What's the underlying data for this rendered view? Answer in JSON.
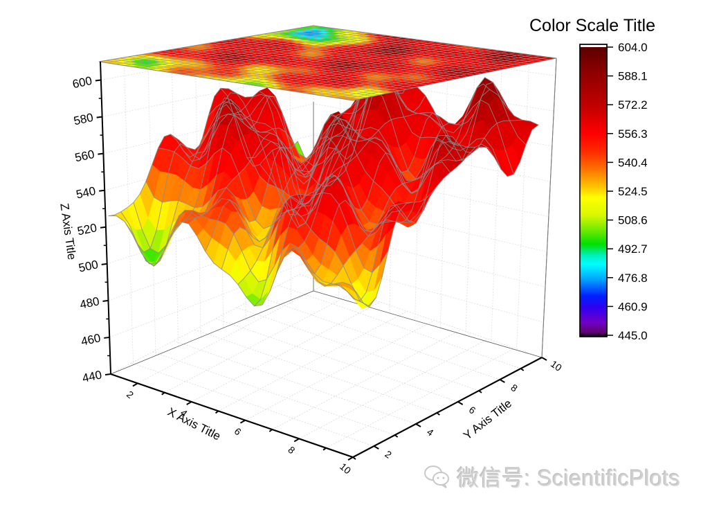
{
  "chart_data": {
    "type": "surface3d",
    "title": "",
    "xlabel": "X Axis Title",
    "ylabel": "Y Axis Title",
    "zlabel": "Z Axis Title",
    "x_ticks": [
      "2",
      "4",
      "6",
      "8",
      "10"
    ],
    "y_ticks": [
      "2",
      "4",
      "6",
      "8",
      "10"
    ],
    "z_ticks": [
      "440",
      "460",
      "480",
      "500",
      "520",
      "540",
      "560",
      "580",
      "600"
    ],
    "xlim": [
      1,
      10
    ],
    "ylim": [
      1,
      10
    ],
    "zlim": [
      440,
      610
    ],
    "grid": true,
    "colormap": "rainbow",
    "projection_top_plane": true,
    "mesh_lines": true,
    "mesh_color": "#8c8c8c",
    "surface_z_range": [
      445.0,
      604.0
    ],
    "surface_description": "Rugged terrain surface mostly 540-600 (red/dark red) with ridges; left front edge drops to ~505-520 (yellow-green); deep valley near back-center around x≈1-3,y≈9-10 reaching ~445-470 (purple/blue)",
    "color_scale": {
      "title": "Color Scale Title",
      "levels": [
        "604.0",
        "588.1",
        "572.2",
        "556.3",
        "540.4",
        "524.5",
        "508.6",
        "492.7",
        "476.8",
        "460.9",
        "445.0"
      ],
      "min": 445.0,
      "max": 604.0,
      "colors": [
        "#7a0000",
        "#9b0000",
        "#c80000",
        "#ff0000",
        "#ff5a00",
        "#ffb000",
        "#ffff00",
        "#aaf000",
        "#00e000",
        "#00ffee",
        "#00a0ff",
        "#0000ff",
        "#5a00e6",
        "#7a00c0",
        "#3a0060"
      ]
    }
  },
  "watermark": {
    "text": "微信号: ScientificPlots"
  }
}
